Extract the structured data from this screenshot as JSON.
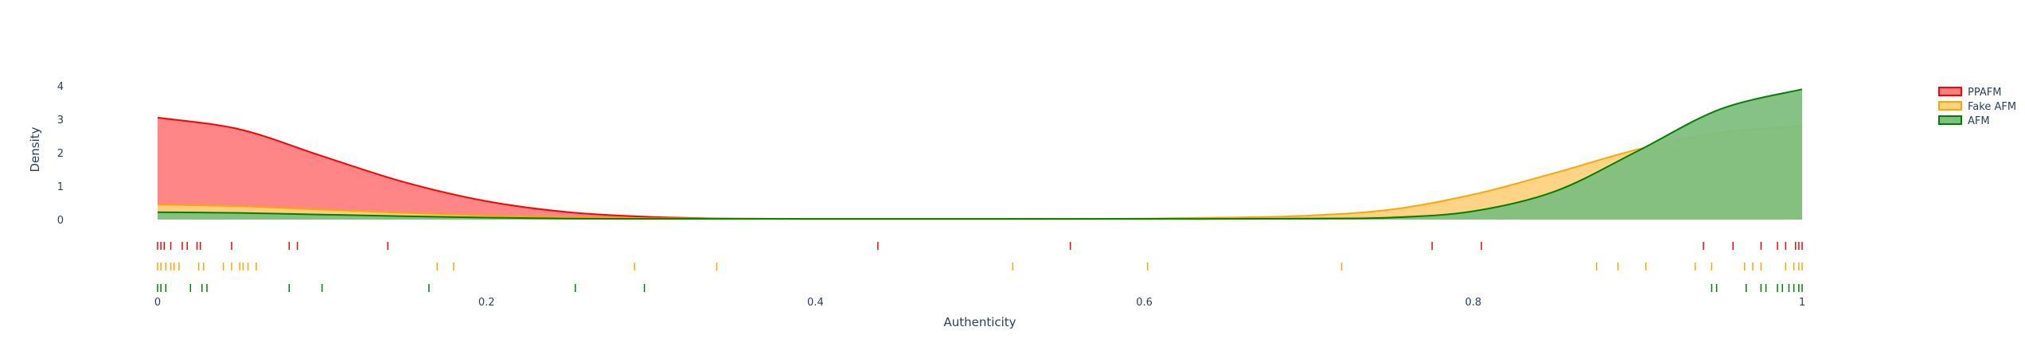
{
  "chart_data": {
    "type": "area",
    "xlabel": "Authenticity",
    "ylabel": "Density",
    "xlim": [
      0,
      1
    ],
    "ylim": [
      0,
      4
    ],
    "x_ticks": [
      {
        "value": 0,
        "label": "0"
      },
      {
        "value": 0.2,
        "label": "0.2"
      },
      {
        "value": 0.4,
        "label": "0.4"
      },
      {
        "value": 0.6,
        "label": "0.6"
      },
      {
        "value": 0.8,
        "label": "0.8"
      },
      {
        "value": 1,
        "label": "1"
      }
    ],
    "y_ticks": [
      {
        "value": 0,
        "label": "0"
      },
      {
        "value": 1,
        "label": "1"
      },
      {
        "value": 2,
        "label": "2"
      },
      {
        "value": 3,
        "label": "3"
      },
      {
        "value": 4,
        "label": "4"
      }
    ],
    "grid": false,
    "legend_position": "top-right",
    "x": [
      0,
      0.05,
      0.1,
      0.15,
      0.2,
      0.25,
      0.3,
      0.35,
      0.4,
      0.45,
      0.5,
      0.55,
      0.6,
      0.65,
      0.7,
      0.75,
      0.8,
      0.85,
      0.9,
      0.95,
      1.0
    ],
    "series": [
      {
        "name": "PPAFM",
        "color": "#ff0000",
        "fill": "#ff7f7f",
        "density": [
          3.05,
          2.7,
          1.9,
          1.12,
          0.55,
          0.22,
          0.08,
          0.03,
          0.02,
          0.02,
          0.02,
          0.02,
          0.02,
          0.03,
          0.05,
          0.1,
          0.16,
          0.24,
          0.31,
          0.38,
          0.42
        ],
        "rug": [
          0,
          0.002,
          0.004,
          0.008,
          0.015,
          0.018,
          0.024,
          0.026,
          0.045,
          0.08,
          0.085,
          0.14,
          0.438,
          0.555,
          0.775,
          0.805,
          0.94,
          0.958,
          0.975,
          0.985,
          0.99,
          0.996,
          0.998,
          1.0
        ]
      },
      {
        "name": "Fake AFM",
        "color": "#ffa500",
        "fill": "#ffd27f",
        "density": [
          0.45,
          0.4,
          0.3,
          0.2,
          0.12,
          0.07,
          0.04,
          0.03,
          0.02,
          0.02,
          0.02,
          0.02,
          0.03,
          0.06,
          0.12,
          0.3,
          0.75,
          1.4,
          2.1,
          2.6,
          2.8
        ],
        "rug": [
          0,
          0.002,
          0.005,
          0.008,
          0.01,
          0.013,
          0.025,
          0.028,
          0.04,
          0.045,
          0.05,
          0.052,
          0.055,
          0.06,
          0.17,
          0.18,
          0.29,
          0.34,
          0.52,
          0.602,
          0.72,
          0.875,
          0.888,
          0.905,
          0.935,
          0.945,
          0.965,
          0.97,
          0.975,
          0.99,
          0.995,
          0.998,
          1.0
        ]
      },
      {
        "name": "AFM",
        "color": "#008000",
        "fill": "#7fbf7f",
        "density": [
          0.22,
          0.2,
          0.15,
          0.1,
          0.06,
          0.03,
          0.02,
          0.02,
          0.02,
          0.02,
          0.02,
          0.02,
          0.02,
          0.02,
          0.03,
          0.06,
          0.25,
          0.85,
          2.05,
          3.3,
          3.9
        ],
        "rug": [
          0,
          0.002,
          0.005,
          0.02,
          0.027,
          0.03,
          0.08,
          0.1,
          0.165,
          0.254,
          0.296,
          0.945,
          0.948,
          0.966,
          0.975,
          0.978,
          0.985,
          0.988,
          0.992,
          0.995,
          0.998,
          1.0
        ]
      }
    ]
  }
}
